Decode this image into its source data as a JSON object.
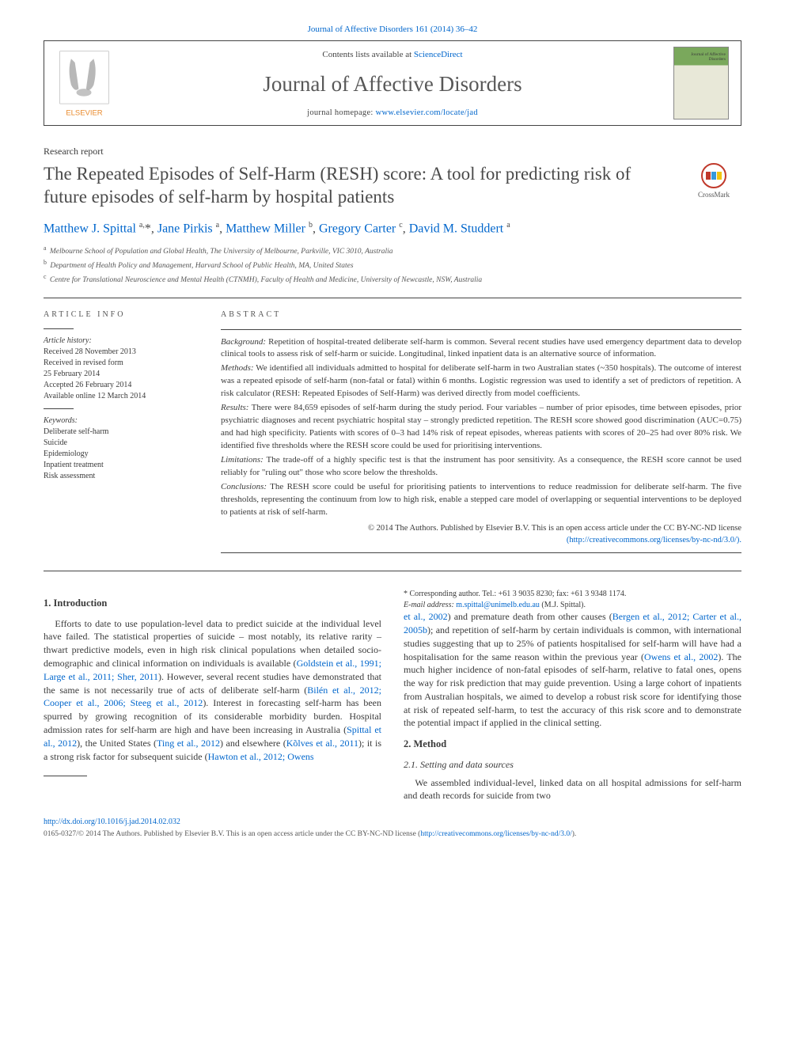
{
  "citation": "Journal of Affective Disorders 161 (2014) 36–42",
  "header": {
    "contents_prefix": "Contents lists available at ",
    "contents_link": "ScienceDirect",
    "journal_name": "Journal of Affective Disorders",
    "homepage_prefix": "journal homepage: ",
    "homepage_link": "www.elsevier.com/locate/jad",
    "publisher_label": "ELSEVIER",
    "cover_line1": "Journal of Affective",
    "cover_line2": "Disorders"
  },
  "article_type": "Research report",
  "title": "The Repeated Episodes of Self-Harm (RESH) score: A tool for predicting risk of future episodes of self-harm by hospital patients",
  "crossmark_label": "CrossMark",
  "authors_html": "Matthew J. Spittal <sup>a,</sup>*, Jane Pirkis <sup>a</sup>, Matthew Miller <sup>b</sup>, Gregory Carter <sup>c</sup>, David M. Studdert <sup>a</sup>",
  "affiliations": [
    {
      "sup": "a",
      "text": "Melbourne School of Population and Global Health, The University of Melbourne, Parkville, VIC 3010, Australia"
    },
    {
      "sup": "b",
      "text": "Department of Health Policy and Management, Harvard School of Public Health, MA, United States"
    },
    {
      "sup": "c",
      "text": "Centre for Translational Neuroscience and Mental Health (CTNMH), Faculty of Health and Medicine, University of Newcastle, NSW, Australia"
    }
  ],
  "article_info": {
    "heading": "ARTICLE INFO",
    "history_label": "Article history:",
    "received": "Received 28 November 2013",
    "revised": "Received in revised form",
    "revised_date": "25 February 2014",
    "accepted": "Accepted 26 February 2014",
    "online": "Available online 12 March 2014",
    "keywords_label": "Keywords:",
    "keywords": [
      "Deliberate self-harm",
      "Suicide",
      "Epidemiology",
      "Inpatient treatment",
      "Risk assessment"
    ]
  },
  "abstract": {
    "heading": "ABSTRACT",
    "background_label": "Background:",
    "background_text": " Repetition of hospital-treated deliberate self-harm is common. Several recent studies have used emergency department data to develop clinical tools to assess risk of self-harm or suicide. Longitudinal, linked inpatient data is an alternative source of information.",
    "methods_label": "Methods:",
    "methods_text": " We identified all individuals admitted to hospital for deliberate self-harm in two Australian states (~350 hospitals). The outcome of interest was a repeated episode of self-harm (non-fatal or fatal) within 6 months. Logistic regression was used to identify a set of predictors of repetition. A risk calculator (RESH: Repeated Episodes of Self-Harm) was derived directly from model coefficients.",
    "results_label": "Results:",
    "results_text": " There were 84,659 episodes of self-harm during the study period. Four variables – number of prior episodes, time between episodes, prior psychiatric diagnoses and recent psychiatric hospital stay – strongly predicted repetition. The RESH score showed good discrimination (AUC=0.75) and had high specificity. Patients with scores of 0–3 had 14% risk of repeat episodes, whereas patients with scores of 20–25 had over 80% risk. We identified five thresholds where the RESH score could be used for prioritising interventions.",
    "limitations_label": "Limitations:",
    "limitations_text": " The trade-off of a highly specific test is that the instrument has poor sensitivity. As a consequence, the RESH score cannot be used reliably for \"ruling out\" those who score below the thresholds.",
    "conclusions_label": "Conclusions:",
    "conclusions_text": " The RESH score could be useful for prioritising patients to interventions to reduce readmission for deliberate self-harm. The five thresholds, representing the continuum from low to high risk, enable a stepped care model of overlapping or sequential interventions to be deployed to patients at risk of self-harm.",
    "copyright": "© 2014 The Authors. Published by Elsevier B.V. This is an open access article under the CC BY-NC-ND license",
    "license_url": "(http://creativecommons.org/licenses/by-nc-nd/3.0/)."
  },
  "body": {
    "intro_heading": "1. Introduction",
    "intro_p1_a": "Efforts to date to use population-level data to predict suicide at the individual level have failed. The statistical properties of suicide – most notably, its relative rarity – thwart predictive models, even in high risk clinical populations when detailed socio-demographic and clinical information on individuals is available (",
    "intro_p1_link1": "Goldstein et al., 1991; Large et al., 2011; Sher, 2011",
    "intro_p1_b": "). However, several recent studies have demonstrated that the same is not necessarily true of acts of deliberate self-harm (",
    "intro_p1_link2": "Bilén et al., 2012; Cooper et al., 2006; Steeg et al., 2012",
    "intro_p1_c": "). Interest in forecasting self-harm has been spurred by growing recognition of its considerable morbidity burden. Hospital admission rates for self-harm are high and have been increasing in Australia (",
    "intro_p1_link3": "Spittal et al., 2012",
    "intro_p1_d": "), the United States (",
    "intro_p1_link4": "Ting et al., 2012",
    "intro_p1_e": ") and elsewhere (",
    "intro_p1_link5": "Kõlves et al., 2011",
    "intro_p1_f": "); it is a strong risk factor for subsequent suicide (",
    "intro_p1_link6": "Hawton et al., 2012; Owens",
    "intro_p1_g": "",
    "intro_p2_link1": "et al., 2002",
    "intro_p2_a": ") and premature death from other causes (",
    "intro_p2_link2": "Bergen et al., 2012; Carter et al., 2005b",
    "intro_p2_b": "); and repetition of self-harm by certain individuals is common, with international studies suggesting that up to 25% of patients hospitalised for self-harm will have had a hospitalisation for the same reason within the previous year (",
    "intro_p2_link3": "Owens et al., 2002",
    "intro_p2_c": "). The much higher incidence of non-fatal episodes of self-harm, relative to fatal ones, opens the way for risk prediction that may guide prevention. Using a large cohort of inpatients from Australian hospitals, we aimed to develop a robust risk score for identifying those at risk of repeated self-harm, to test the accuracy of this risk score and to demonstrate the potential impact if applied in the clinical setting.",
    "method_heading": "2. Method",
    "method_sub": "2.1. Setting and data sources",
    "method_p": "We assembled individual-level, linked data on all hospital admissions for self-harm and death records for suicide from two"
  },
  "footnote": {
    "corr_label": "* Corresponding author. Tel.: +61 3 9035 8230; fax: +61 3 9348 1174.",
    "email_label": "E-mail address: ",
    "email": "m.spittal@unimelb.edu.au",
    "email_suffix": " (M.J. Spittal)."
  },
  "bottom": {
    "doi": "http://dx.doi.org/10.1016/j.jad.2014.02.032",
    "issn_line": "0165-0327/© 2014 The Authors. Published by Elsevier B.V. This is an open access article under the CC BY-NC-ND license (",
    "issn_link": "http://creativecommons.org/licenses/by-nc-nd/3.0/",
    "issn_close": ")."
  },
  "colors": {
    "link": "#0066cc",
    "text": "#3a3a3a",
    "rule": "#444444",
    "cover_green": "#7aa85c",
    "crossmark_red": "#c0392b",
    "elsevier_orange": "#e98b2e"
  }
}
